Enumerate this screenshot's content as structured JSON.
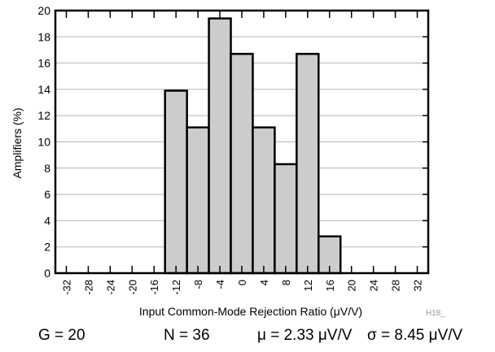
{
  "chart_data": {
    "type": "bar",
    "bins": [
      -12,
      -8,
      -4,
      0,
      4,
      8,
      12,
      16
    ],
    "bin_width": 4,
    "values": [
      13.9,
      11.1,
      19.4,
      16.7,
      11.1,
      8.3,
      16.7,
      2.8
    ],
    "xlabel": "Input Common-Mode Rejection Ratio (μV/V)",
    "ylabel": "Amplifiers (%)",
    "xlim": [
      -34,
      34
    ],
    "ylim": [
      0,
      20
    ],
    "x_ticks": [
      "-32",
      "-28",
      "-24",
      "-20",
      "-16",
      "-12",
      "-8",
      "-4",
      "0",
      "4",
      "8",
      "12",
      "16",
      "20",
      "24",
      "28",
      "32"
    ],
    "y_ticks": [
      "0",
      "2",
      "4",
      "6",
      "8",
      "10",
      "12",
      "14",
      "16",
      "18",
      "20"
    ],
    "grid": "horizontal",
    "bar_color": "#cccccc"
  },
  "figure_code": "H18_",
  "stats": {
    "gain": "G = 20",
    "n": "N = 36",
    "mean": "μ = 2.33 μV/V",
    "sigma": "σ = 8.45 μV/V"
  }
}
